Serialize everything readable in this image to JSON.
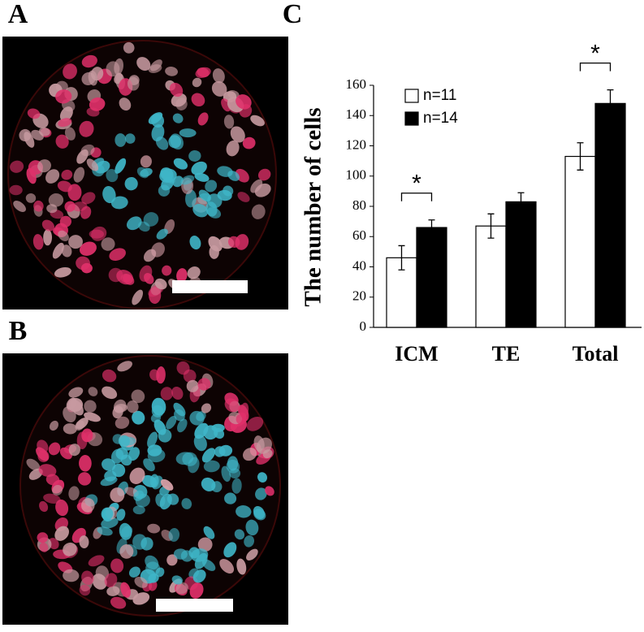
{
  "panel_labels": [
    "A",
    "B",
    "C"
  ],
  "chart_data": {
    "type": "bar",
    "ylabel": "The number of cells",
    "categories": [
      "ICM",
      "TE",
      "Total"
    ],
    "series": [
      {
        "name": "n=11",
        "color": "#ffffff",
        "values": [
          46,
          67,
          113
        ],
        "errors": [
          8,
          8,
          9
        ]
      },
      {
        "name": "n=14",
        "color": "#000000",
        "values": [
          66,
          83,
          148
        ],
        "errors": [
          5,
          6,
          9
        ]
      }
    ],
    "significance": [
      "*",
      null,
      "*"
    ],
    "ylim": [
      0,
      160
    ],
    "yticks": [
      0,
      20,
      40,
      60,
      80,
      100,
      120,
      140,
      160
    ],
    "legend": "upper left"
  }
}
